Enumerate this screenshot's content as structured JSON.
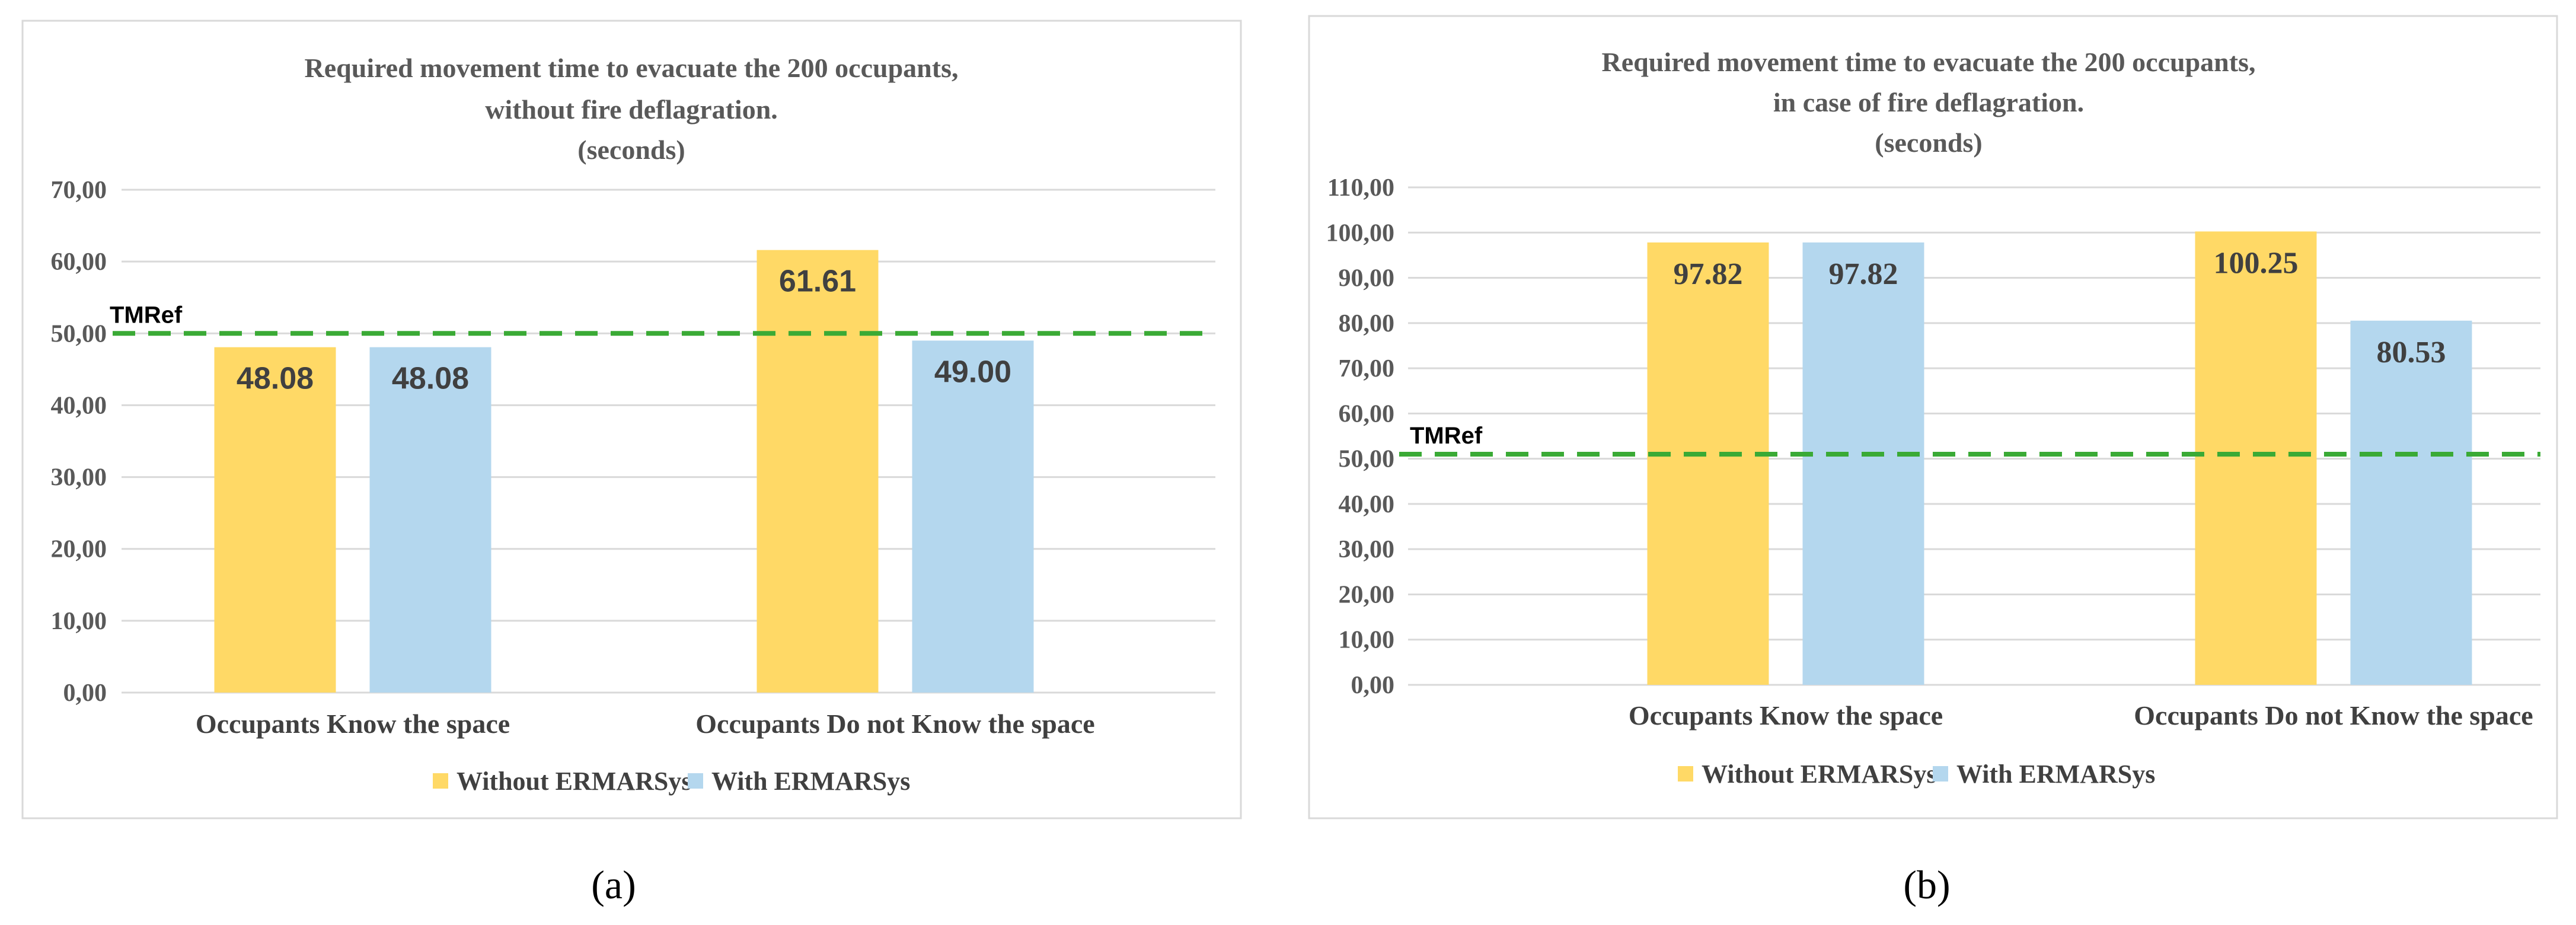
{
  "chart_data": [
    {
      "type": "bar",
      "panel_label": "(a)",
      "title_lines": [
        "Required movement time to evacuate the 200 occupants,",
        "without fire deflagration.",
        "(seconds)"
      ],
      "categories": [
        "Occupants Know the space",
        "Occupants Do not Know the space"
      ],
      "series": [
        {
          "name": "Without ERMARSys",
          "values": [
            48.08,
            61.61
          ],
          "labels": [
            "48.08",
            "61.61"
          ],
          "color": "#FFD966"
        },
        {
          "name": "With ERMARSys",
          "values": [
            48.08,
            49.0
          ],
          "labels": [
            "48.08",
            "49.00"
          ],
          "color": "#B4D7EE"
        }
      ],
      "ylim": [
        0,
        70
      ],
      "yticks": [
        0,
        10,
        20,
        30,
        40,
        50,
        60,
        70
      ],
      "ytick_labels": [
        "0,00",
        "10,00",
        "20,00",
        "30,00",
        "40,00",
        "50,00",
        "60,00",
        "70,00"
      ],
      "reference_line": {
        "label": "TMRef",
        "value": 50,
        "color": "#3AAA35"
      },
      "grid": true,
      "legend": "bottom"
    },
    {
      "type": "bar",
      "panel_label": "(b)",
      "title_lines": [
        "Required movement time to evacuate the 200 occupants,",
        "in case of fire deflagration.",
        "(seconds)"
      ],
      "categories": [
        "Occupants Know the space",
        "Occupants Do not Know the space"
      ],
      "series": [
        {
          "name": "Without ERMARSys",
          "values": [
            97.82,
            100.25
          ],
          "labels": [
            "97.82",
            "100.25"
          ],
          "color": "#FFD966"
        },
        {
          "name": "With ERMARSys",
          "values": [
            97.82,
            80.53
          ],
          "labels": [
            "97.82",
            "80.53"
          ],
          "color": "#B4D7EE"
        }
      ],
      "ylim": [
        0,
        110
      ],
      "yticks": [
        0,
        10,
        20,
        30,
        40,
        50,
        60,
        70,
        80,
        90,
        100,
        110
      ],
      "ytick_labels": [
        "0,00",
        "10,00",
        "20,00",
        "30,00",
        "40,00",
        "50,00",
        "60,00",
        "70,00",
        "80,00",
        "90,00",
        "100,00",
        "110,00"
      ],
      "reference_line": {
        "label": "TMRef",
        "value": 51,
        "color": "#3AAA35"
      },
      "grid": true,
      "legend": "bottom"
    }
  ]
}
